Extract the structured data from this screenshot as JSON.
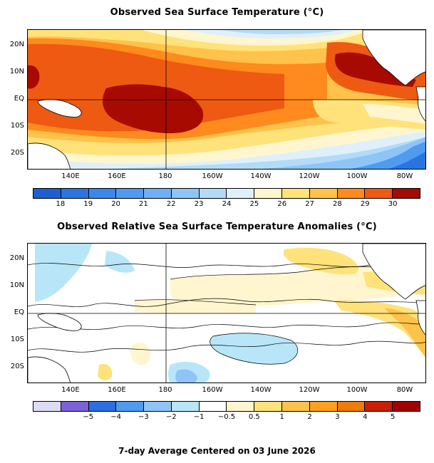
{
  "sst": {
    "title": "Observed Sea Surface Temperature (°C)",
    "lat_labels": [
      "20N",
      "10N",
      "EQ",
      "10S",
      "20S"
    ],
    "lon_labels": [
      "140E",
      "160E",
      "180",
      "160W",
      "140W",
      "120W",
      "100W",
      "80W"
    ],
    "colorbar": {
      "colors": [
        "#1e5fd0",
        "#2a74e0",
        "#3a88ea",
        "#4f9bf0",
        "#6fb0f4",
        "#8ec5f6",
        "#b3dbf8",
        "#dff0fb",
        "#fff6cf",
        "#ffe27a",
        "#ffc24a",
        "#ff8a1e",
        "#ee5a12",
        "#a60a00"
      ],
      "tick_labels": [
        "18",
        "19",
        "20",
        "21",
        "22",
        "23",
        "24",
        "25",
        "26",
        "27",
        "28",
        "29",
        "30"
      ]
    }
  },
  "anomaly": {
    "title": "Observed Relative Sea Surface Temperature Anomalies (°C)",
    "lat_labels": [
      "20N",
      "10N",
      "EQ",
      "10S",
      "20S"
    ],
    "lon_labels": [
      "140E",
      "160E",
      "180",
      "160W",
      "140W",
      "120W",
      "100W",
      "80W"
    ],
    "colorbar": {
      "colors": [
        "#dcdcf8",
        "#7a62d8",
        "#2b6fe0",
        "#4f9bf0",
        "#8ec5f6",
        "#b8e6f8",
        "#ffffff",
        "#fff6cf",
        "#ffe27a",
        "#ffc24a",
        "#ffa01e",
        "#f07a0a",
        "#c82000",
        "#a00000"
      ],
      "tick_labels": [
        "−5",
        "−4",
        "−3",
        "−2",
        "−1",
        "−0.5",
        "0.5",
        "1",
        "2",
        "3",
        "4",
        "5"
      ]
    }
  },
  "footer": "7-day Average Centered on 03 June 2026"
}
